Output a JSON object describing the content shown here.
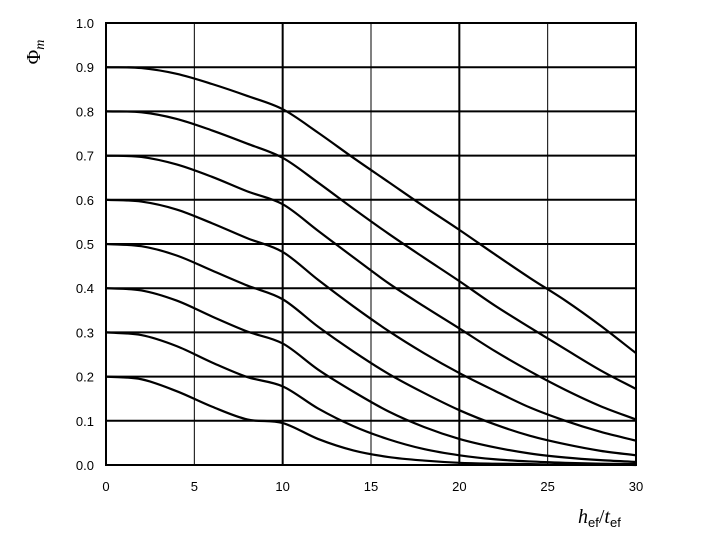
{
  "chart_data": {
    "type": "line",
    "title": "",
    "xlabel": "h_ef/t_ef",
    "ylabel": "Φm",
    "xlabel_parts": {
      "main1": "h",
      "sub1": "ef",
      "slash": "/",
      "main2": "t",
      "sub2": "ef"
    },
    "ylabel_parts": {
      "main": "Φ",
      "sub": "m"
    },
    "xlim": [
      0,
      30
    ],
    "ylim": [
      0,
      1.0
    ],
    "x_ticks": [
      "0",
      "5",
      "10",
      "15",
      "20",
      "25",
      "30"
    ],
    "y_ticks": [
      "0.0",
      "0.1",
      "0.2",
      "0.3",
      "0.4",
      "0.5",
      "0.6",
      "0.7",
      "0.8",
      "0.9",
      "1.0"
    ],
    "grid": true,
    "x": [
      0,
      2,
      4,
      6,
      8,
      10,
      12,
      14,
      16,
      18,
      20,
      22,
      24,
      26,
      28,
      30
    ],
    "series": [
      {
        "values": [
          0.9,
          0.898,
          0.885,
          0.862,
          0.835,
          0.805,
          0.752,
          0.695,
          0.64,
          0.585,
          0.532,
          0.477,
          0.423,
          0.372,
          0.315,
          0.253
        ]
      },
      {
        "values": [
          0.8,
          0.798,
          0.783,
          0.757,
          0.727,
          0.695,
          0.639,
          0.58,
          0.523,
          0.469,
          0.416,
          0.361,
          0.311,
          0.262,
          0.214,
          0.172
        ]
      },
      {
        "values": [
          0.7,
          0.697,
          0.68,
          0.652,
          0.619,
          0.59,
          0.53,
          0.47,
          0.411,
          0.359,
          0.309,
          0.258,
          0.212,
          0.17,
          0.133,
          0.103
        ]
      },
      {
        "values": [
          0.6,
          0.596,
          0.578,
          0.547,
          0.513,
          0.482,
          0.419,
          0.359,
          0.303,
          0.253,
          0.208,
          0.168,
          0.13,
          0.1,
          0.075,
          0.055
        ]
      },
      {
        "values": [
          0.5,
          0.495,
          0.474,
          0.44,
          0.406,
          0.375,
          0.313,
          0.257,
          0.206,
          0.163,
          0.124,
          0.092,
          0.066,
          0.047,
          0.032,
          0.022
        ]
      },
      {
        "values": [
          0.4,
          0.395,
          0.372,
          0.336,
          0.302,
          0.275,
          0.216,
          0.166,
          0.121,
          0.086,
          0.059,
          0.04,
          0.026,
          0.017,
          0.011,
          0.007
        ]
      },
      {
        "values": [
          0.3,
          0.294,
          0.269,
          0.232,
          0.199,
          0.178,
          0.128,
          0.088,
          0.058,
          0.036,
          0.022,
          0.013,
          0.008,
          0.005,
          0.003,
          0.002
        ]
      },
      {
        "values": [
          0.2,
          0.194,
          0.167,
          0.132,
          0.103,
          0.095,
          0.059,
          0.033,
          0.018,
          0.01,
          0.005,
          0.003,
          0.002,
          0.001,
          0.001,
          0.0
        ]
      }
    ]
  }
}
